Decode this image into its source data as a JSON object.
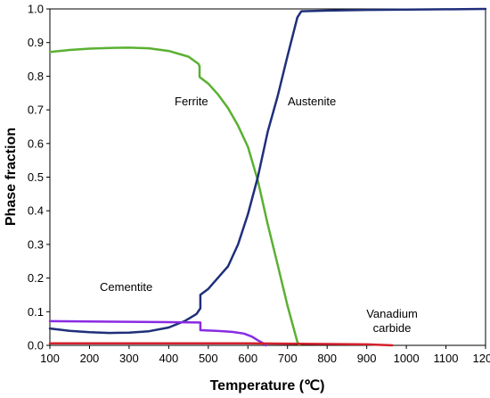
{
  "chart_data": {
    "type": "line",
    "title": "",
    "xlabel": "Temperature (℃)",
    "ylabel": "Phase fraction",
    "xlim": [
      100,
      1200
    ],
    "ylim": [
      0,
      1.0
    ],
    "xticks": [
      "100",
      "200",
      "300",
      "400",
      "500",
      "600",
      "700",
      "800",
      "900",
      "1000",
      "1100",
      "1200"
    ],
    "yticks": [
      "0.0",
      "0.1",
      "0.2",
      "0.3",
      "0.4",
      "0.5",
      "0.6",
      "0.7",
      "0.8",
      "0.9",
      "1.0"
    ],
    "grid": false,
    "series": [
      {
        "name": "Ferrite",
        "color": "#5ab031",
        "x": [
          100,
          150,
          200,
          250,
          300,
          350,
          400,
          450,
          475,
          478,
          478,
          500,
          525,
          550,
          575,
          600,
          625,
          650,
          675,
          700,
          725,
          730
        ],
        "y": [
          0.872,
          0.878,
          0.882,
          0.884,
          0.885,
          0.883,
          0.875,
          0.858,
          0.837,
          0.83,
          0.798,
          0.778,
          0.745,
          0.705,
          0.653,
          0.59,
          0.49,
          0.36,
          0.24,
          0.118,
          0.01,
          0.0
        ]
      },
      {
        "name": "Austenite",
        "color": "#1f2f7a",
        "x": [
          100,
          150,
          200,
          250,
          300,
          350,
          400,
          440,
          470,
          480,
          480,
          500,
          550,
          575,
          600,
          625,
          650,
          675,
          700,
          725,
          735,
          800,
          900,
          1000,
          1100,
          1200
        ],
        "y": [
          0.05,
          0.043,
          0.039,
          0.037,
          0.038,
          0.042,
          0.053,
          0.072,
          0.093,
          0.11,
          0.15,
          0.168,
          0.235,
          0.3,
          0.39,
          0.5,
          0.635,
          0.74,
          0.86,
          0.975,
          0.993,
          0.995,
          0.997,
          0.998,
          0.999,
          1.0
        ]
      },
      {
        "name": "Cementite",
        "color": "#8a2be2",
        "x": [
          100,
          200,
          300,
          400,
          478,
          480,
          480,
          520,
          560,
          590,
          610,
          625,
          640,
          645
        ],
        "y": [
          0.072,
          0.071,
          0.07,
          0.069,
          0.068,
          0.068,
          0.045,
          0.043,
          0.04,
          0.035,
          0.026,
          0.015,
          0.005,
          0.0
        ]
      },
      {
        "name": "Vanadium carbide",
        "color": "#d2202a",
        "x": [
          100,
          300,
          500,
          600,
          700,
          800,
          900,
          965
        ],
        "y": [
          0.006,
          0.006,
          0.006,
          0.006,
          0.005,
          0.004,
          0.003,
          0.0
        ]
      }
    ],
    "annotations": [
      {
        "series": "Ferrite",
        "text": "Ferrite"
      },
      {
        "series": "Austenite",
        "text": "Austenite"
      },
      {
        "series": "Cementite",
        "text": "Cementite"
      },
      {
        "series": "Vanadium carbide",
        "text": "Vanadium",
        "text2": "carbide"
      }
    ]
  }
}
